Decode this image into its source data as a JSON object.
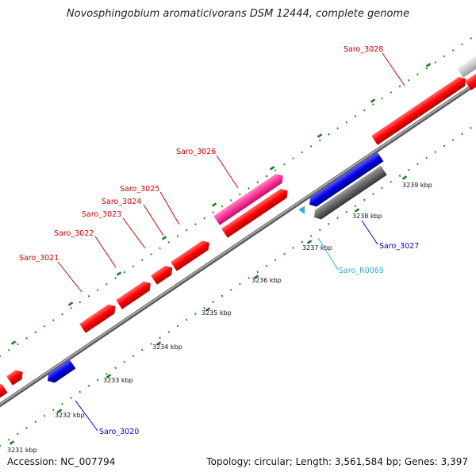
{
  "title": "Novosphingobium aromaticivorans DSM 12444, complete genome",
  "footer": {
    "accession": "Accession: NC_007794",
    "summary": "Topology: circular; Length: 3,561,584 bp; Genes: 3,397"
  },
  "colors": {
    "backbone": "#8a8a8a",
    "tick": "#1f7a1f",
    "forward_gene": "#ff0000",
    "reverse_gene": "#0000dd",
    "rrna_gene": "#ff3399",
    "grey_gene": "#666666",
    "light_gene": "#c8c8c8",
    "trna": "#33aadd"
  },
  "kbp_labels": [
    "3231 kbp",
    "3232 kbp",
    "3233 kbp",
    "3234 kbp",
    "3235 kbp",
    "3236 kbp",
    "3237 kbp",
    "3238 kbp",
    "3239 kbp"
  ],
  "gene_labels": [
    {
      "name": "Saro_3021",
      "color": "#cc0000"
    },
    {
      "name": "Saro_3022",
      "color": "#cc0000"
    },
    {
      "name": "Saro_3023",
      "color": "#cc0000"
    },
    {
      "name": "Saro_3024",
      "color": "#cc0000"
    },
    {
      "name": "Saro_3025",
      "color": "#cc0000"
    },
    {
      "name": "Saro_3026",
      "color": "#cc0000"
    },
    {
      "name": "Saro_3028",
      "color": "#cc0000"
    },
    {
      "name": "Saro_3020",
      "color": "#0000cc"
    },
    {
      "name": "Saro_3027",
      "color": "#0000cc"
    },
    {
      "name": "Saro_R0069",
      "color": "#33aadd"
    }
  ]
}
